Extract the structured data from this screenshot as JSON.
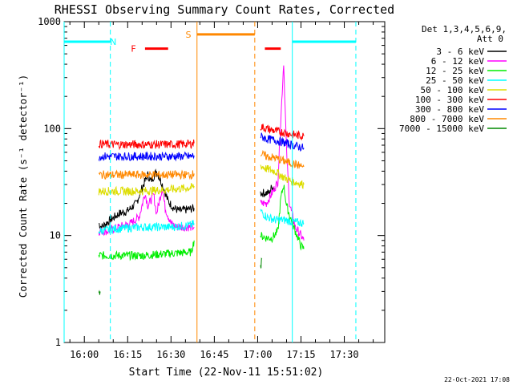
{
  "chart_data": {
    "type": "line",
    "title": "RHESSI Observing Summary Count Rates, Corrected",
    "xlabel": "Start Time (22-Nov-11 15:51:02)",
    "ylabel": "Corrected Count Rate (s⁻¹ detector⁻¹)",
    "yscale": "log",
    "ylim": [
      1,
      1000
    ],
    "xlim_minutes": [
      -7,
      104
    ],
    "x_tick_labels": [
      "16:00",
      "16:15",
      "16:30",
      "16:45",
      "17:00",
      "17:15",
      "17:30"
    ],
    "x_tick_minutes": [
      0,
      15,
      30,
      45,
      60,
      75,
      90
    ],
    "y_tick_labels": [
      "1",
      "10",
      "100",
      "1000"
    ],
    "y_tick_values": [
      1,
      10,
      100,
      1000
    ],
    "legend_header": [
      "Det 1,3,4,5,6,9,",
      "Att 0"
    ],
    "legend_location": "top-right",
    "series": [
      {
        "name": "3 - 6 keV",
        "color": "#000000",
        "segments": [
          [
            [
              5,
              13
            ],
            [
              6,
              12
            ],
            [
              9,
              14
            ],
            [
              12,
              16
            ],
            [
              15,
              17
            ],
            [
              18,
              20
            ],
            [
              20,
              28
            ],
            [
              22,
              37
            ],
            [
              23,
              32
            ],
            [
              25,
              40
            ],
            [
              27,
              30
            ],
            [
              29,
              21
            ],
            [
              31,
              18
            ],
            [
              33,
              17
            ],
            [
              38,
              18
            ]
          ],
          [
            [
              61,
              25
            ],
            [
              64,
              25
            ],
            [
              65,
              29
            ],
            [
              66,
              27
            ]
          ]
        ]
      },
      {
        "name": "6 - 12 keV",
        "color": "#ff00ff",
        "segments": [
          [
            [
              5,
              11
            ],
            [
              8,
              11
            ],
            [
              12,
              12
            ],
            [
              16,
              13
            ],
            [
              19,
              15
            ],
            [
              21,
              25
            ],
            [
              22,
              19
            ],
            [
              24,
              24
            ],
            [
              25,
              16
            ],
            [
              27,
              28
            ],
            [
              28,
              18
            ],
            [
              30,
              13
            ],
            [
              32,
              12
            ],
            [
              38,
              12
            ]
          ],
          [
            [
              61,
              20
            ],
            [
              63,
              20
            ],
            [
              65,
              25
            ],
            [
              67,
              32
            ],
            [
              68,
              120
            ],
            [
              69,
              420
            ],
            [
              70,
              60
            ],
            [
              71,
              20
            ],
            [
              73,
              12
            ],
            [
              75,
              10
            ],
            [
              76,
              9
            ]
          ]
        ]
      },
      {
        "name": "12 - 25 keV",
        "color": "#00ee00",
        "segments": [
          [
            [
              5,
              6.5
            ],
            [
              10,
              6.5
            ],
            [
              20,
              6.5
            ],
            [
              30,
              6.8
            ],
            [
              37,
              7
            ],
            [
              38,
              9
            ]
          ],
          [
            [
              61,
              10
            ],
            [
              63,
              9.5
            ],
            [
              65,
              9.5
            ],
            [
              67,
              11
            ],
            [
              68,
              22
            ],
            [
              69,
              30
            ],
            [
              70,
              19
            ],
            [
              72,
              13
            ],
            [
              75,
              8
            ],
            [
              76,
              7.5
            ]
          ]
        ]
      },
      {
        "name": "25 - 50 keV",
        "color": "#00ffff",
        "segments": [
          [
            [
              5,
              11
            ],
            [
              10,
              11.5
            ],
            [
              20,
              12
            ],
            [
              30,
              12
            ],
            [
              37,
              12.5
            ],
            [
              38,
              13
            ]
          ],
          [
            [
              61,
              17
            ],
            [
              63,
              15
            ],
            [
              66,
              14
            ],
            [
              69,
              14
            ],
            [
              72,
              13.5
            ],
            [
              76,
              13
            ]
          ]
        ]
      },
      {
        "name": "50 - 100 keV",
        "color": "#dddd00",
        "segments": [
          [
            [
              5,
              26
            ],
            [
              10,
              26
            ],
            [
              20,
              26
            ],
            [
              30,
              27
            ],
            [
              37,
              28
            ],
            [
              38,
              29
            ]
          ],
          [
            [
              61,
              45
            ],
            [
              63,
              42
            ],
            [
              66,
              40
            ],
            [
              69,
              35
            ],
            [
              72,
              32
            ],
            [
              76,
              30
            ]
          ]
        ]
      },
      {
        "name": "100 - 300 keV",
        "color": "#ff0000",
        "segments": [
          [
            [
              5,
              72
            ],
            [
              10,
              71
            ],
            [
              20,
              71
            ],
            [
              30,
              71
            ],
            [
              37,
              72
            ],
            [
              38,
              73
            ]
          ],
          [
            [
              61,
              105
            ],
            [
              63,
              100
            ],
            [
              66,
              95
            ],
            [
              69,
              92
            ],
            [
              72,
              88
            ],
            [
              76,
              85
            ]
          ]
        ]
      },
      {
        "name": "300 - 800 keV",
        "color": "#0000ff",
        "segments": [
          [
            [
              5,
              55
            ],
            [
              10,
              55
            ],
            [
              20,
              55
            ],
            [
              30,
              55
            ],
            [
              37,
              55
            ],
            [
              38,
              56
            ]
          ],
          [
            [
              61,
              85
            ],
            [
              63,
              80
            ],
            [
              66,
              78
            ],
            [
              69,
              74
            ],
            [
              72,
              70
            ],
            [
              76,
              66
            ]
          ]
        ]
      },
      {
        "name": "800 - 7000 keV",
        "color": "#ff8800",
        "segments": [
          [
            [
              5,
              37
            ],
            [
              10,
              37
            ],
            [
              20,
              37
            ],
            [
              30,
              37
            ],
            [
              37,
              37
            ],
            [
              38,
              38
            ]
          ],
          [
            [
              61,
              58
            ],
            [
              63,
              55
            ],
            [
              66,
              53
            ],
            [
              69,
              50
            ],
            [
              72,
              47
            ],
            [
              76,
              44
            ]
          ]
        ]
      },
      {
        "name": "7000 - 15000 keV",
        "color": "#008800",
        "segments": [
          [
            [
              5,
              2.7
            ],
            [
              5.5,
              3
            ]
          ],
          [
            [
              61,
              5
            ],
            [
              61.5,
              6
            ]
          ]
        ]
      }
    ],
    "annotations": [
      {
        "label": "N",
        "color": "#00ffff",
        "bar_minutes": [
          -7,
          9
        ],
        "bar_level": 650,
        "label_at_minutes": 10,
        "dashed_marker_minutes": [
          9,
          94
        ],
        "solid_marker_minutes": [
          -7,
          72
        ],
        "right_bar_minutes": [
          72,
          94
        ]
      },
      {
        "label": "F",
        "color": "#ff0000",
        "bar_minutes": [
          [
            21,
            29
          ],
          [
            62.5,
            68
          ]
        ],
        "bar_level": 560,
        "label_at_minutes": 17
      },
      {
        "label": "S",
        "color": "#ff8800",
        "bar_minutes": [
          39,
          59
        ],
        "bar_level": 760,
        "label_at_minutes": 36,
        "solid_marker_minutes": [
          39
        ],
        "dashed_marker_minutes": [
          59
        ]
      }
    ]
  },
  "footer_date": "22-Oct-2021 17:08"
}
